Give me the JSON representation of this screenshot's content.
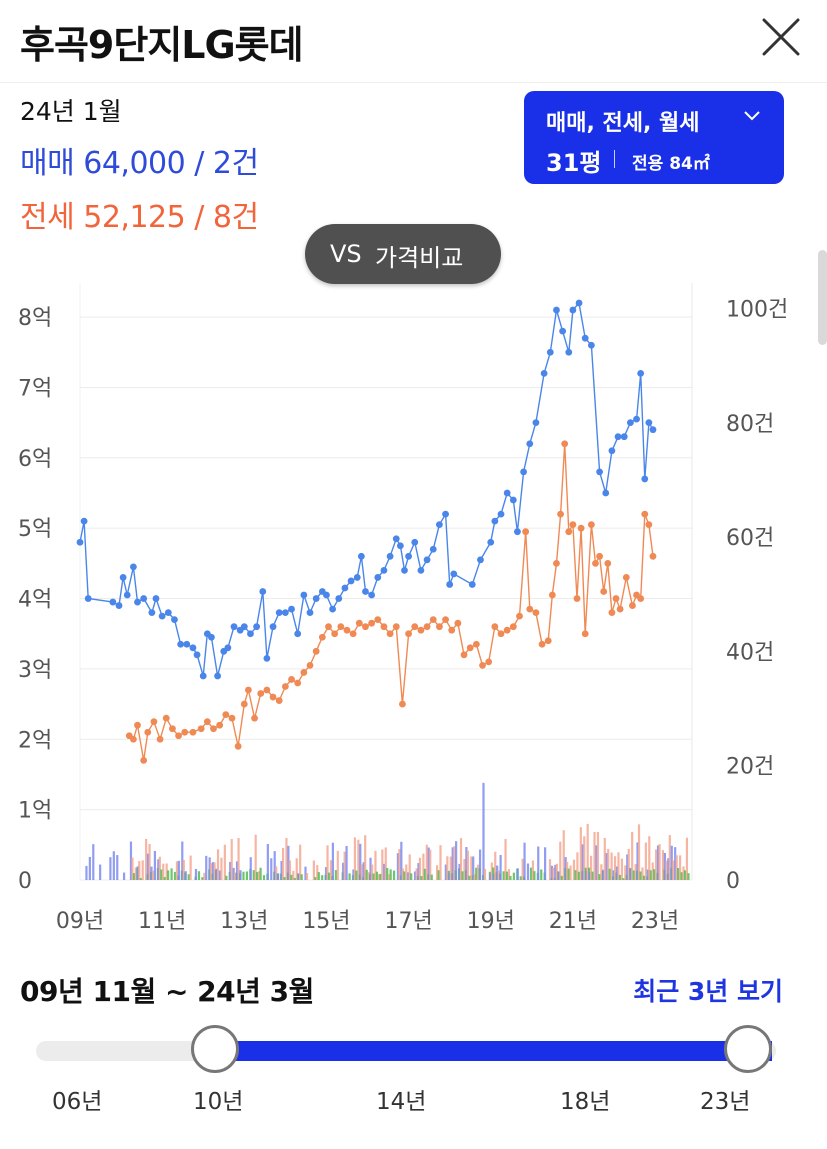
{
  "header": {
    "title": "후곡9단지LG롯데",
    "close_icon": "close-icon"
  },
  "summary": {
    "date": "24년 1월",
    "sale": "매매 64,000 / 2건",
    "jeonse": "전세 52,125 / 8건",
    "colors": {
      "sale": "#2f4bd9",
      "jeonse": "#f2643a"
    }
  },
  "type_selector": {
    "types_label": "매매, 전세, 월세",
    "chevron_icon": "chevron-down-icon",
    "pyeong": "31평",
    "area": "전용 84㎡",
    "color": "#1a2fe8"
  },
  "compare_button": {
    "vs": "VS",
    "label": "가격비교"
  },
  "period": {
    "range": "09년 11월 ~ 24년 3월",
    "recent_link": "최근 3년 보기"
  },
  "slider": {
    "ticks": [
      "06년",
      "10년",
      "14년",
      "18년",
      "23년"
    ],
    "start": "10년",
    "end": "23년",
    "fill_color": "#1a2fe8"
  },
  "chart_data": {
    "type": "line",
    "x_ticks": [
      "09년",
      "11년",
      "13년",
      "15년",
      "17년",
      "19년",
      "21년",
      "23년"
    ],
    "y_left_ticks": [
      "0",
      "1억",
      "2억",
      "3억",
      "4억",
      "5억",
      "6억",
      "7억",
      "8억"
    ],
    "y_right_ticks": [
      "0",
      "20건",
      "40건",
      "60건",
      "80건",
      "100건"
    ],
    "y_left_range_eok": [
      0,
      8
    ],
    "y_right_range_count": [
      0,
      100
    ],
    "x_range_year": [
      2009.0,
      2023.9
    ],
    "grid": true,
    "series": [
      {
        "color": "#4a86ea",
        "axis": "left",
        "unit": "억",
        "points": [
          [
            2009.0,
            4.8
          ],
          [
            2009.1,
            5.1
          ],
          [
            2009.2,
            4.0
          ],
          [
            2009.8,
            3.95
          ],
          [
            2009.95,
            3.9
          ],
          [
            2010.05,
            4.3
          ],
          [
            2010.15,
            4.05
          ],
          [
            2010.3,
            4.45
          ],
          [
            2010.4,
            3.95
          ],
          [
            2010.55,
            4.0
          ],
          [
            2010.75,
            3.8
          ],
          [
            2010.85,
            4.0
          ],
          [
            2011.0,
            3.75
          ],
          [
            2011.15,
            3.8
          ],
          [
            2011.3,
            3.7
          ],
          [
            2011.45,
            3.35
          ],
          [
            2011.6,
            3.35
          ],
          [
            2011.75,
            3.3
          ],
          [
            2011.85,
            3.2
          ],
          [
            2012.0,
            2.9
          ],
          [
            2012.1,
            3.5
          ],
          [
            2012.2,
            3.45
          ],
          [
            2012.35,
            2.9
          ],
          [
            2012.5,
            3.25
          ],
          [
            2012.6,
            3.3
          ],
          [
            2012.75,
            3.6
          ],
          [
            2012.9,
            3.55
          ],
          [
            2013.0,
            3.6
          ],
          [
            2013.15,
            3.5
          ],
          [
            2013.3,
            3.6
          ],
          [
            2013.45,
            4.1
          ],
          [
            2013.55,
            3.15
          ],
          [
            2013.7,
            3.6
          ],
          [
            2013.85,
            3.8
          ],
          [
            2014.0,
            3.8
          ],
          [
            2014.15,
            3.85
          ],
          [
            2014.3,
            3.5
          ],
          [
            2014.45,
            4.05
          ],
          [
            2014.6,
            3.8
          ],
          [
            2014.75,
            4.0
          ],
          [
            2014.9,
            4.1
          ],
          [
            2015.0,
            4.05
          ],
          [
            2015.15,
            3.85
          ],
          [
            2015.3,
            4.0
          ],
          [
            2015.45,
            4.15
          ],
          [
            2015.6,
            4.25
          ],
          [
            2015.75,
            4.3
          ],
          [
            2015.85,
            4.6
          ],
          [
            2015.95,
            4.1
          ],
          [
            2016.1,
            4.05
          ],
          [
            2016.25,
            4.3
          ],
          [
            2016.4,
            4.4
          ],
          [
            2016.55,
            4.6
          ],
          [
            2016.7,
            4.85
          ],
          [
            2016.8,
            4.75
          ],
          [
            2016.9,
            4.4
          ],
          [
            2017.0,
            4.6
          ],
          [
            2017.15,
            4.8
          ],
          [
            2017.3,
            4.4
          ],
          [
            2017.45,
            4.55
          ],
          [
            2017.6,
            4.7
          ],
          [
            2017.75,
            5.05
          ],
          [
            2017.9,
            5.2
          ],
          [
            2018.0,
            4.2
          ],
          [
            2018.1,
            4.35
          ],
          [
            2018.55,
            4.2
          ],
          [
            2018.75,
            4.55
          ],
          [
            2019.0,
            4.8
          ],
          [
            2019.1,
            5.1
          ],
          [
            2019.25,
            5.2
          ],
          [
            2019.4,
            5.5
          ],
          [
            2019.55,
            5.4
          ],
          [
            2019.65,
            4.95
          ],
          [
            2019.8,
            5.8
          ],
          [
            2019.95,
            6.2
          ],
          [
            2020.1,
            6.5
          ],
          [
            2020.3,
            7.2
          ],
          [
            2020.45,
            7.5
          ],
          [
            2020.6,
            8.1
          ],
          [
            2020.75,
            7.8
          ],
          [
            2020.9,
            7.5
          ],
          [
            2021.0,
            8.1
          ],
          [
            2021.15,
            8.2
          ],
          [
            2021.3,
            7.7
          ],
          [
            2021.45,
            7.6
          ],
          [
            2021.65,
            5.8
          ],
          [
            2021.8,
            5.5
          ],
          [
            2021.95,
            6.1
          ],
          [
            2022.1,
            6.3
          ],
          [
            2022.25,
            6.3
          ],
          [
            2022.4,
            6.5
          ],
          [
            2022.55,
            6.55
          ],
          [
            2022.65,
            7.2
          ],
          [
            2022.75,
            5.7
          ],
          [
            2022.85,
            6.5
          ],
          [
            2022.95,
            6.4
          ]
        ]
      },
      {
        "color": "#f08a55",
        "axis": "left",
        "unit": "억",
        "points": [
          [
            2010.2,
            2.05
          ],
          [
            2010.3,
            2.0
          ],
          [
            2010.4,
            2.2
          ],
          [
            2010.55,
            1.7
          ],
          [
            2010.65,
            2.1
          ],
          [
            2010.8,
            2.25
          ],
          [
            2010.95,
            2.0
          ],
          [
            2011.1,
            2.3
          ],
          [
            2011.25,
            2.15
          ],
          [
            2011.4,
            2.05
          ],
          [
            2011.55,
            2.1
          ],
          [
            2011.75,
            2.1
          ],
          [
            2011.95,
            2.15
          ],
          [
            2012.1,
            2.25
          ],
          [
            2012.25,
            2.15
          ],
          [
            2012.4,
            2.2
          ],
          [
            2012.55,
            2.35
          ],
          [
            2012.7,
            2.3
          ],
          [
            2012.85,
            1.9
          ],
          [
            2013.0,
            2.5
          ],
          [
            2013.1,
            2.7
          ],
          [
            2013.25,
            2.3
          ],
          [
            2013.4,
            2.65
          ],
          [
            2013.55,
            2.7
          ],
          [
            2013.7,
            2.6
          ],
          [
            2013.85,
            2.55
          ],
          [
            2014.0,
            2.75
          ],
          [
            2014.15,
            2.85
          ],
          [
            2014.3,
            2.8
          ],
          [
            2014.45,
            2.95
          ],
          [
            2014.6,
            3.05
          ],
          [
            2014.75,
            3.25
          ],
          [
            2014.9,
            3.45
          ],
          [
            2015.05,
            3.6
          ],
          [
            2015.2,
            3.5
          ],
          [
            2015.35,
            3.6
          ],
          [
            2015.5,
            3.55
          ],
          [
            2015.65,
            3.5
          ],
          [
            2015.8,
            3.65
          ],
          [
            2015.95,
            3.6
          ],
          [
            2016.1,
            3.65
          ],
          [
            2016.25,
            3.7
          ],
          [
            2016.4,
            3.6
          ],
          [
            2016.55,
            3.5
          ],
          [
            2016.7,
            3.6
          ],
          [
            2016.85,
            2.5
          ],
          [
            2017.0,
            3.5
          ],
          [
            2017.15,
            3.6
          ],
          [
            2017.3,
            3.55
          ],
          [
            2017.45,
            3.6
          ],
          [
            2017.6,
            3.7
          ],
          [
            2017.75,
            3.6
          ],
          [
            2017.9,
            3.7
          ],
          [
            2018.05,
            3.55
          ],
          [
            2018.2,
            3.65
          ],
          [
            2018.35,
            3.2
          ],
          [
            2018.5,
            3.3
          ],
          [
            2018.65,
            3.35
          ],
          [
            2018.8,
            3.05
          ],
          [
            2018.95,
            3.1
          ],
          [
            2019.1,
            3.6
          ],
          [
            2019.25,
            3.5
          ],
          [
            2019.4,
            3.55
          ],
          [
            2019.55,
            3.6
          ],
          [
            2019.7,
            3.75
          ],
          [
            2019.85,
            4.95
          ],
          [
            2019.95,
            3.85
          ],
          [
            2020.1,
            3.8
          ],
          [
            2020.25,
            3.35
          ],
          [
            2020.4,
            3.4
          ],
          [
            2020.5,
            4.05
          ],
          [
            2020.6,
            4.5
          ],
          [
            2020.7,
            5.2
          ],
          [
            2020.8,
            6.2
          ],
          [
            2020.9,
            4.95
          ],
          [
            2021.0,
            5.05
          ],
          [
            2021.1,
            4.0
          ],
          [
            2021.2,
            5.0
          ],
          [
            2021.3,
            3.5
          ],
          [
            2021.45,
            5.05
          ],
          [
            2021.55,
            4.5
          ],
          [
            2021.65,
            4.6
          ],
          [
            2021.75,
            4.1
          ],
          [
            2021.85,
            4.5
          ],
          [
            2021.95,
            3.8
          ],
          [
            2022.05,
            4.0
          ],
          [
            2022.15,
            3.85
          ],
          [
            2022.3,
            4.3
          ],
          [
            2022.45,
            3.9
          ],
          [
            2022.55,
            4.05
          ],
          [
            2022.65,
            4.0
          ],
          [
            2022.75,
            5.2
          ],
          [
            2022.85,
            5.05
          ],
          [
            2022.95,
            4.6
          ]
        ]
      }
    ],
    "bars": {
      "axis": "right",
      "unit": "건",
      "colors": [
        "#7d8cf0",
        "#f5a892",
        "#55bb55"
      ],
      "sale_counts_note": "monthly transaction counts (sale, jeonse, wolse)"
    }
  }
}
